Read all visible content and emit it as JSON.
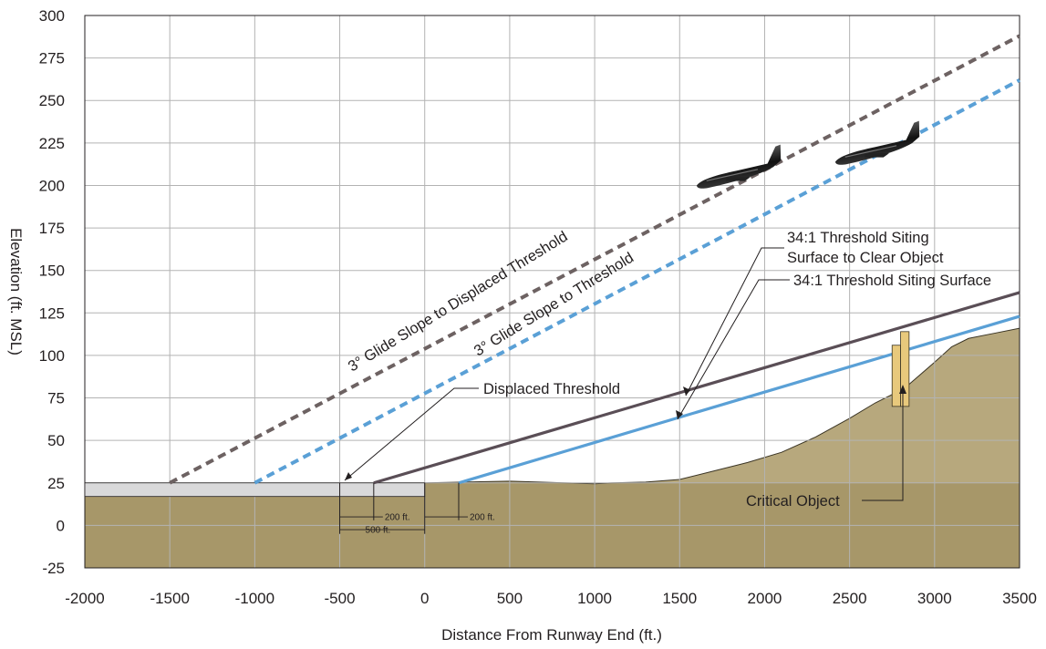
{
  "chart_data": {
    "type": "line",
    "xlabel": "Distance From Runway End (ft.)",
    "ylabel": "Elevation (ft. MSL)",
    "xlim": [
      -2000,
      3500
    ],
    "ylim": [
      -25,
      300
    ],
    "x_ticks": [
      "-2000",
      "-1500",
      "-1000",
      "-500",
      "0",
      "500",
      "1000",
      "1500",
      "2000",
      "2500",
      "3000",
      "3500"
    ],
    "y_ticks": [
      "300",
      "275",
      "250",
      "225",
      "200",
      "175",
      "150",
      "125",
      "100",
      "75",
      "50",
      "25",
      "0",
      "-25"
    ],
    "grid": true,
    "colors": {
      "grid": "#b3b3b3",
      "ground": "#a79769",
      "ground_light": "#c4b68e",
      "runway": "#d9d9da",
      "glide_displaced": "#6d6262",
      "glide_threshold": "#5aa0d6",
      "tss_clear": "#5a4e56",
      "tss": "#5aa0d6",
      "object": "#e8c97c",
      "leader": "#231f20"
    },
    "series": [
      {
        "name": "3° Glide Slope to Displaced Threshold",
        "style": "dashed",
        "x": [
          -1500,
          3500
        ],
        "y": [
          25,
          288
        ]
      },
      {
        "name": "3° Glide Slope to Threshold",
        "style": "dashed",
        "x": [
          -1000,
          3500
        ],
        "y": [
          25,
          262
        ]
      },
      {
        "name": "34:1 Threshold Siting Surface to Clear Object",
        "style": "solid",
        "x": [
          -300,
          3500
        ],
        "y": [
          25,
          137
        ]
      },
      {
        "name": "34:1 Threshold Siting Surface",
        "style": "solid",
        "x": [
          200,
          3500
        ],
        "y": [
          25,
          123
        ]
      }
    ],
    "terrain": {
      "x": [
        0,
        500,
        1000,
        1100,
        1300,
        1500,
        1700,
        1900,
        2100,
        2300,
        2500,
        2650,
        2750,
        2850,
        3000,
        3100,
        3200,
        3350,
        3500
      ],
      "y": [
        25,
        26,
        24.5,
        25,
        25.5,
        27,
        32,
        37,
        43,
        52,
        63,
        72,
        77,
        83,
        96,
        105,
        110,
        113,
        116
      ]
    },
    "runway": {
      "x": [
        -2000,
        0
      ],
      "top": 25,
      "bottom": 17
    },
    "critical_object": {
      "x": [
        2750,
        2850
      ],
      "y": [
        70,
        114
      ],
      "step_x": 2800,
      "step_y": 106
    },
    "annotations": {
      "glide_displaced": "3° Glide Slope to Displaced Threshold",
      "glide_threshold": "3° Glide Slope to Threshold",
      "tss_clear_line1": "34:1 Threshold Siting",
      "tss_clear_line2": "Surface to Clear Object",
      "tss": "34:1 Threshold Siting Surface",
      "displaced_threshold": "Displaced Threshold",
      "critical_object": "Critical Object",
      "dim_200_left": "200 ft.",
      "dim_500": "500 ft.",
      "dim_200_right": "200 ft."
    },
    "dimensions": {
      "displaced_threshold_x": -500,
      "tss_clear_start_x": -300,
      "runway_end_x": 0,
      "tss_start_x": 200
    }
  }
}
